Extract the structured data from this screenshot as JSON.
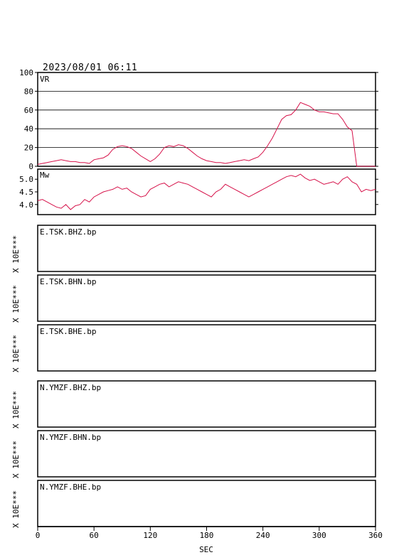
{
  "header": {
    "datetime": "2023/08/01 06:11"
  },
  "chart_data": [
    {
      "type": "line",
      "name": "vr-panel",
      "label": "VR",
      "xlim": [
        0,
        360
      ],
      "ylim": [
        0,
        100
      ],
      "yticks": [
        0,
        20,
        40,
        60,
        80,
        100
      ],
      "grid": true,
      "color": "#d6124a",
      "x": [
        0,
        5,
        10,
        15,
        20,
        25,
        30,
        35,
        40,
        45,
        50,
        55,
        60,
        65,
        70,
        75,
        80,
        85,
        90,
        95,
        100,
        105,
        110,
        115,
        120,
        125,
        130,
        135,
        140,
        145,
        150,
        155,
        160,
        165,
        170,
        175,
        180,
        185,
        190,
        195,
        200,
        205,
        210,
        215,
        220,
        225,
        230,
        235,
        240,
        245,
        250,
        255,
        260,
        265,
        270,
        275,
        280,
        285,
        290,
        295,
        300,
        305,
        310,
        315,
        320,
        325,
        330,
        335,
        340,
        345,
        350,
        355,
        360
      ],
      "y": [
        2,
        3,
        4,
        5,
        6,
        7,
        6,
        5,
        5,
        4,
        4,
        3,
        7,
        8,
        9,
        12,
        18,
        21,
        22,
        21,
        19,
        15,
        11,
        8,
        5,
        8,
        13,
        20,
        22,
        21,
        23,
        22,
        19,
        15,
        11,
        8,
        6,
        5,
        4,
        4,
        3,
        4,
        5,
        6,
        7,
        6,
        8,
        10,
        15,
        22,
        30,
        40,
        50,
        54,
        55,
        60,
        68,
        66,
        64,
        60,
        58,
        58,
        57,
        56,
        56,
        50,
        42,
        38,
        -8,
        -8,
        -8,
        -8,
        -8
      ],
      "series": []
    },
    {
      "type": "line",
      "name": "mw-panel",
      "label": "Mw",
      "xlim": [
        0,
        360
      ],
      "ylim": [
        3.6,
        5.4
      ],
      "yticks": [
        4.0,
        4.5,
        5.0
      ],
      "grid": false,
      "color": "#d6124a",
      "x": [
        0,
        5,
        10,
        15,
        20,
        25,
        30,
        35,
        40,
        45,
        50,
        55,
        60,
        65,
        70,
        75,
        80,
        85,
        90,
        95,
        100,
        105,
        110,
        115,
        120,
        125,
        130,
        135,
        140,
        145,
        150,
        155,
        160,
        165,
        170,
        175,
        180,
        185,
        190,
        195,
        200,
        205,
        210,
        215,
        220,
        225,
        230,
        235,
        240,
        245,
        250,
        255,
        260,
        265,
        270,
        275,
        280,
        285,
        290,
        295,
        300,
        305,
        310,
        315,
        320,
        325,
        330,
        335,
        340,
        345,
        350,
        355,
        360
      ],
      "y": [
        4.15,
        4.2,
        4.1,
        4.0,
        3.9,
        3.85,
        4.0,
        3.8,
        3.95,
        4.0,
        4.2,
        4.1,
        4.3,
        4.4,
        4.5,
        4.55,
        4.6,
        4.7,
        4.6,
        4.65,
        4.5,
        4.4,
        4.3,
        4.35,
        4.6,
        4.7,
        4.8,
        4.85,
        4.7,
        4.8,
        4.9,
        4.85,
        4.8,
        4.7,
        4.6,
        4.5,
        4.4,
        4.3,
        4.5,
        4.6,
        4.8,
        4.7,
        4.6,
        4.5,
        4.4,
        4.3,
        4.4,
        4.5,
        4.6,
        4.7,
        4.8,
        4.9,
        5.0,
        5.1,
        5.15,
        5.1,
        5.2,
        5.05,
        4.95,
        5.0,
        4.9,
        4.8,
        4.85,
        4.9,
        4.8,
        5.0,
        5.1,
        4.9,
        4.8,
        4.5,
        4.6,
        4.55,
        4.6
      ],
      "series": []
    }
  ],
  "waveforms": [
    {
      "label": "E.TSK.BHZ.bp"
    },
    {
      "label": "E.TSK.BHN.bp"
    },
    {
      "label": "E.TSK.BHE.bp"
    },
    {
      "label": "N.YMZF.BHZ.bp"
    },
    {
      "label": "N.YMZF.BHN.bp"
    },
    {
      "label": "N.YMZF.BHE.bp"
    }
  ],
  "amp_label": "X 10E***",
  "x_axis": {
    "label": "SEC",
    "ticks": [
      0,
      60,
      120,
      180,
      240,
      300,
      360
    ]
  }
}
